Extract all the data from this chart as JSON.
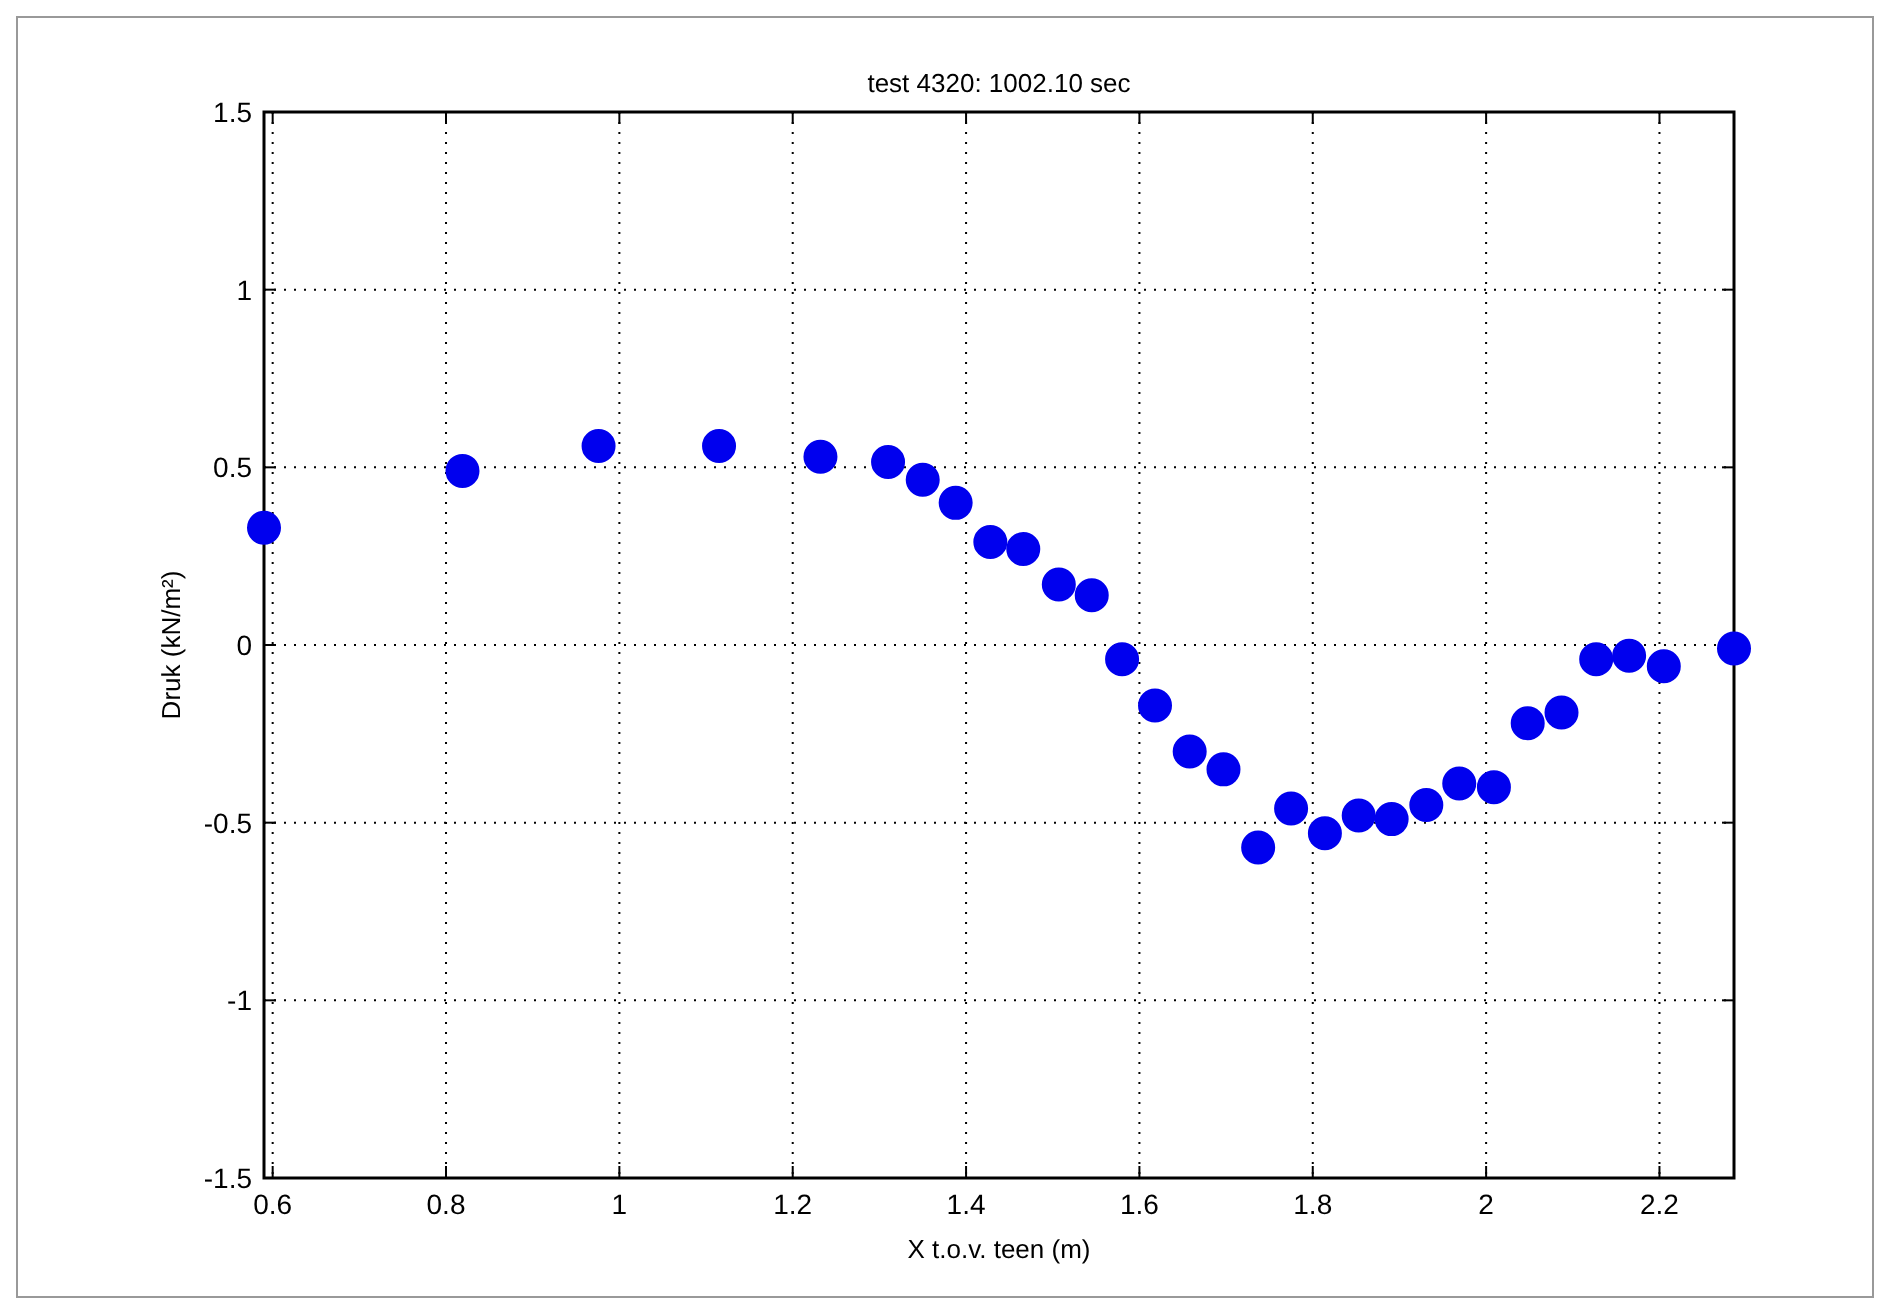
{
  "chart_data": {
    "type": "scatter",
    "title": "test 4320: 1002.10 sec",
    "xlabel": "X t.o.v. teen (m)",
    "ylabel": "Druk (kN/m²)",
    "x": [
      0.59,
      0.819,
      0.976,
      1.115,
      1.232,
      1.31,
      1.35,
      1.388,
      1.428,
      1.466,
      1.507,
      1.545,
      1.58,
      1.618,
      1.658,
      1.697,
      1.737,
      1.775,
      1.814,
      1.853,
      1.891,
      1.931,
      1.969,
      2.009,
      2.048,
      2.087,
      2.127,
      2.165,
      2.205,
      2.286
    ],
    "series": [
      {
        "color": "#0000ee",
        "values": [
          0.33,
          0.49,
          0.56,
          0.56,
          0.53,
          0.515,
          0.465,
          0.4,
          0.29,
          0.27,
          0.17,
          0.14,
          -0.04,
          -0.17,
          -0.3,
          -0.35,
          -0.57,
          -0.46,
          -0.53,
          -0.48,
          -0.49,
          -0.45,
          -0.39,
          -0.4,
          -0.22,
          -0.19,
          -0.04,
          -0.03,
          -0.06,
          -0.01
        ]
      }
    ],
    "xlim": [
      0.59,
      2.286
    ],
    "ylim": [
      -1.5,
      1.5
    ],
    "xticks": [
      0.6,
      0.8,
      1,
      1.2,
      1.4,
      1.6,
      1.8,
      2,
      2.2
    ],
    "yticks": [
      -1.5,
      -1,
      -0.5,
      0,
      0.5,
      1,
      1.5
    ],
    "grid": true,
    "marker": "circle"
  }
}
